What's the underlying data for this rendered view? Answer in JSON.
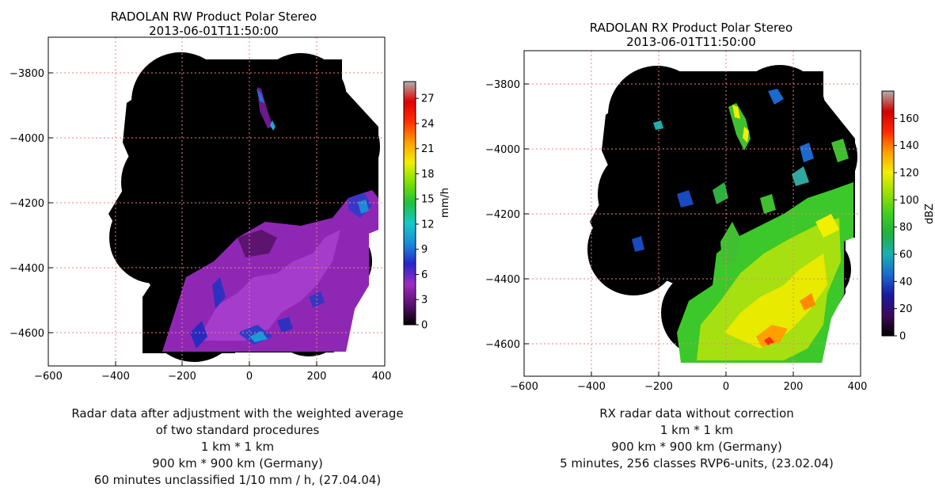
{
  "colors": {
    "grid": "#f08080",
    "map_background": "#000000",
    "rw_cmap": [
      "#000000",
      "#5a1070",
      "#9a2cc0",
      "#2626c8",
      "#1a8ad8",
      "#18c8c8",
      "#20c040",
      "#7ae000",
      "#f0f000",
      "#ffa000",
      "#ff3000",
      "#e00000",
      "#b0b0b0"
    ],
    "rx_cmap": [
      "#000000",
      "#3c0a5a",
      "#1a1aa0",
      "#1a6ad0",
      "#18b0b0",
      "#20b040",
      "#40d020",
      "#9ae000",
      "#f0f000",
      "#ffa000",
      "#ff2a00",
      "#d00000",
      "#b0b0b0"
    ]
  },
  "chart_data": [
    {
      "type": "heatmap",
      "title": "RADOLAN RW Product Polar Stereo",
      "subtitle": "2013-06-01T11:50:00",
      "xlim": [
        -600,
        400
      ],
      "ylim": [
        -4700,
        -3700
      ],
      "xticks": [
        -600,
        -400,
        -200,
        0,
        200,
        400
      ],
      "xtick_labels": [
        "−600",
        "−400",
        "−200",
        "0",
        "200",
        "400"
      ],
      "yticks": [
        -3800,
        -4000,
        -4200,
        -4400,
        -4600
      ],
      "ytick_labels": [
        "−3800",
        "−4000",
        "−4200",
        "−4400",
        "−4600"
      ],
      "grid": true,
      "colorbar": {
        "label": "mm/h",
        "range": [
          0,
          29
        ],
        "ticks": [
          0,
          3,
          6,
          9,
          12,
          15,
          18,
          21,
          24,
          27
        ],
        "tick_labels": [
          "0",
          "3",
          "6",
          "9",
          "12",
          "15",
          "18",
          "21",
          "24",
          "27"
        ]
      },
      "caption": [
        "Radar data after adjustment with the weighted average",
        "of two standard procedures",
        "1 km * 1 km",
        "900 km * 900 km (Germany)",
        "60 minutes unclassified 1/10 mm / h, (27.04.04)"
      ]
    },
    {
      "type": "heatmap",
      "title": "RADOLAN RX Product Polar Stereo",
      "subtitle": "2013-06-01T11:50:00",
      "xlim": [
        -600,
        400
      ],
      "ylim": [
        -4700,
        -3700
      ],
      "xticks": [
        -600,
        -400,
        -200,
        0,
        200,
        400
      ],
      "xtick_labels": [
        "−600",
        "−400",
        "−200",
        "0",
        "200",
        "400"
      ],
      "yticks": [
        -3800,
        -4000,
        -4200,
        -4400,
        -4600
      ],
      "ytick_labels": [
        "−3800",
        "−4000",
        "−4200",
        "−4400",
        "−4600"
      ],
      "grid": true,
      "colorbar": {
        "label": "dBZ",
        "range": [
          0,
          180
        ],
        "ticks": [
          0,
          20,
          40,
          60,
          80,
          100,
          120,
          140,
          160
        ],
        "tick_labels": [
          "0",
          "20",
          "40",
          "60",
          "80",
          "100",
          "120",
          "140",
          "160"
        ]
      },
      "caption": [
        "RX radar data without correction",
        "1 km * 1 km",
        "900 km * 900 km (Germany)",
        "5 minutes, 256 classes RVP6-units, (23.02.04)"
      ]
    }
  ]
}
